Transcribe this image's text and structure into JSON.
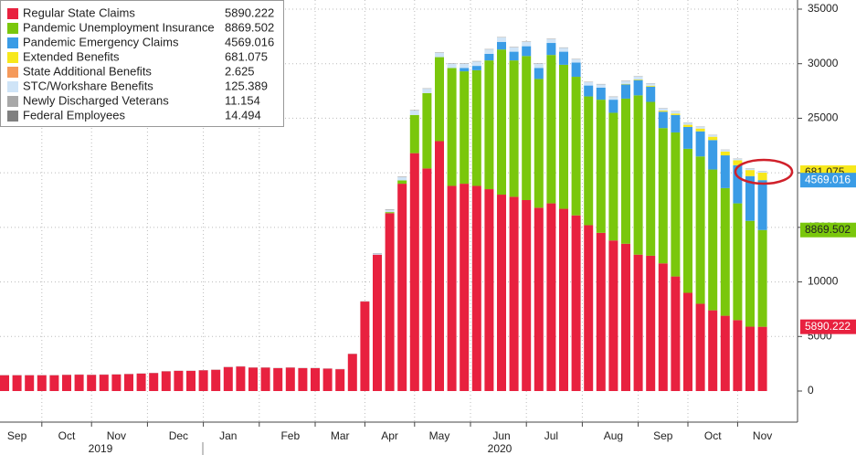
{
  "chart_data": {
    "type": "stacked_bar",
    "categories": [
      null,
      "Sep",
      null,
      null,
      null,
      "Oct",
      null,
      null,
      null,
      "Nov",
      null,
      null,
      null,
      null,
      "Dec",
      null,
      null,
      null,
      "Jan",
      null,
      null,
      null,
      null,
      "Feb",
      null,
      null,
      null,
      "Mar",
      null,
      null,
      null,
      "Apr",
      null,
      null,
      null,
      "May",
      null,
      null,
      null,
      null,
      "Jun",
      null,
      null,
      null,
      "Jul",
      null,
      null,
      null,
      null,
      "Aug",
      null,
      null,
      null,
      "Sep",
      null,
      null,
      null,
      "Oct",
      null,
      null,
      null,
      "Nov"
    ],
    "year_labels": [
      "2019",
      "2020"
    ],
    "ylim": [
      -2500,
      35000
    ],
    "yticks": [
      0,
      5000,
      10000,
      15000,
      20000,
      25000,
      30000,
      35000
    ],
    "grid": true,
    "legend": "top-left",
    "series": [
      {
        "name": "Regular State Claims",
        "color": "#e8213f",
        "values": [
          1450,
          1450,
          1450,
          1450,
          1450,
          1480,
          1500,
          1480,
          1500,
          1520,
          1550,
          1600,
          1650,
          1800,
          1850,
          1850,
          1900,
          1950,
          2200,
          2250,
          2150,
          2150,
          2100,
          2150,
          2100,
          2100,
          2050,
          2000,
          3400,
          8200,
          12500,
          16300,
          19000,
          21800,
          20400,
          22900,
          18800,
          19000,
          18800,
          18500,
          18000,
          17800,
          17500,
          16800,
          17200,
          16700,
          16100,
          15200,
          14500,
          13800,
          13500,
          12500,
          12400,
          11700,
          10500,
          9000,
          8000,
          7400,
          6900,
          6500,
          5900,
          5890.222
        ]
      },
      {
        "name": "Pandemic Unemployment Insurance",
        "color": "#7ac70c",
        "values": [
          0,
          0,
          0,
          0,
          0,
          0,
          0,
          0,
          0,
          0,
          0,
          0,
          0,
          0,
          0,
          0,
          0,
          0,
          0,
          0,
          0,
          0,
          0,
          0,
          0,
          0,
          0,
          0,
          0,
          0,
          0,
          100,
          300,
          3500,
          6900,
          7700,
          10800,
          10300,
          10600,
          11800,
          13300,
          12500,
          13200,
          11800,
          13600,
          13200,
          12700,
          11800,
          12200,
          11700,
          13300,
          14600,
          14100,
          12400,
          13200,
          13200,
          13500,
          12900,
          11700,
          10700,
          9700,
          8869.502
        ]
      },
      {
        "name": "Pandemic Emergency Claims",
        "color": "#3a9ce6",
        "values": [
          0,
          0,
          0,
          0,
          0,
          0,
          0,
          0,
          0,
          0,
          0,
          0,
          0,
          0,
          0,
          0,
          0,
          0,
          0,
          0,
          0,
          0,
          0,
          0,
          0,
          0,
          0,
          0,
          0,
          0,
          0,
          0,
          0,
          0,
          0,
          0,
          0,
          300,
          400,
          600,
          700,
          800,
          900,
          1000,
          1100,
          1200,
          1300,
          1000,
          1100,
          1200,
          1300,
          1400,
          1400,
          1500,
          1600,
          2000,
          2300,
          2700,
          3000,
          3500,
          4100,
          4569.016
        ]
      },
      {
        "name": "Extended Benefits",
        "color": "#f7e81b",
        "values": [
          0,
          0,
          0,
          0,
          0,
          0,
          0,
          0,
          0,
          0,
          0,
          0,
          0,
          0,
          0,
          0,
          0,
          0,
          0,
          0,
          0,
          0,
          0,
          0,
          0,
          0,
          0,
          0,
          0,
          0,
          0,
          0,
          0,
          0,
          0,
          0,
          0,
          0,
          0,
          0,
          0,
          0,
          0,
          0,
          0,
          0,
          0,
          0,
          0,
          0,
          50,
          60,
          80,
          100,
          130,
          200,
          250,
          300,
          350,
          450,
          550,
          681.075
        ]
      },
      {
        "name": "State Additional Benefits",
        "color": "#f59a5b",
        "values": [
          0,
          0,
          0,
          0,
          0,
          0,
          0,
          0,
          0,
          0,
          0,
          0,
          0,
          0,
          0,
          0,
          0,
          0,
          0,
          0,
          0,
          0,
          0,
          0,
          0,
          0,
          0,
          0,
          0,
          0,
          0,
          0,
          0,
          0,
          0,
          0,
          0,
          0,
          0,
          0,
          0,
          0,
          0,
          0,
          0,
          0,
          0,
          0,
          0,
          0,
          0,
          0,
          0,
          0,
          0,
          3,
          3,
          3,
          3,
          3,
          3,
          2.625
        ]
      },
      {
        "name": "STC/Workshare Benefits",
        "color": "#cfe4f7",
        "values": [
          0,
          0,
          0,
          0,
          0,
          0,
          0,
          0,
          0,
          0,
          0,
          0,
          0,
          0,
          0,
          0,
          0,
          0,
          0,
          0,
          0,
          0,
          0,
          0,
          0,
          0,
          0,
          0,
          0,
          0,
          100,
          200,
          300,
          400,
          400,
          400,
          400,
          400,
          400,
          400,
          400,
          400,
          400,
          400,
          350,
          350,
          300,
          300,
          300,
          250,
          250,
          250,
          200,
          200,
          200,
          180,
          160,
          150,
          140,
          130,
          128,
          125.389
        ]
      },
      {
        "name": "Newly Discharged Veterans",
        "color": "#a8a8a8",
        "values": [
          10,
          10,
          10,
          10,
          10,
          10,
          10,
          10,
          10,
          10,
          10,
          10,
          10,
          10,
          10,
          10,
          10,
          10,
          10,
          10,
          10,
          10,
          10,
          10,
          10,
          10,
          10,
          10,
          10,
          15,
          20,
          25,
          25,
          25,
          20,
          20,
          20,
          20,
          20,
          20,
          20,
          20,
          20,
          20,
          20,
          20,
          20,
          20,
          20,
          20,
          20,
          20,
          15,
          15,
          15,
          15,
          15,
          12,
          12,
          12,
          12,
          11.154
        ]
      },
      {
        "name": "Federal Employees",
        "color": "#808080",
        "values": [
          10,
          10,
          10,
          10,
          10,
          10,
          10,
          10,
          10,
          10,
          10,
          10,
          10,
          10,
          10,
          10,
          10,
          10,
          10,
          10,
          10,
          10,
          10,
          10,
          10,
          10,
          10,
          10,
          10,
          15,
          20,
          25,
          25,
          25,
          20,
          20,
          20,
          20,
          20,
          20,
          20,
          20,
          20,
          20,
          20,
          20,
          20,
          20,
          20,
          20,
          20,
          20,
          15,
          15,
          15,
          15,
          15,
          15,
          15,
          15,
          15,
          14.494
        ]
      }
    ]
  }
}
